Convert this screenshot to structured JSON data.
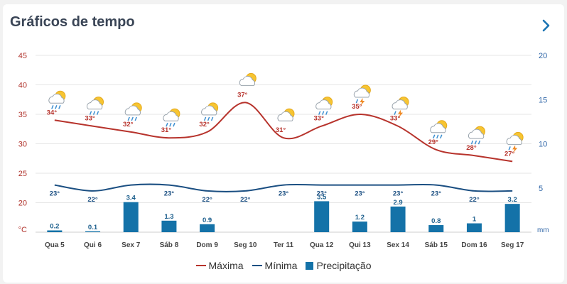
{
  "header": {
    "title": "Gráficos de tempo"
  },
  "icons": {
    "next": "chevron-right-icon"
  },
  "legend": {
    "max": "Máxima",
    "min": "Mínima",
    "precip": "Precipitação"
  },
  "colors": {
    "max": "#b7332c",
    "min": "#1b4f82",
    "precip": "#1472a8"
  },
  "chart_data": {
    "type": "line",
    "categories": [
      "Qua 5",
      "Qui 6",
      "Sex 7",
      "Sáb 8",
      "Dom 9",
      "Seg 10",
      "Ter 11",
      "Qua 12",
      "Qui 13",
      "Sex 14",
      "Sáb 15",
      "Dom 16",
      "Seg 17"
    ],
    "series": [
      {
        "name": "Máxima",
        "values": [
          34,
          33,
          32,
          31,
          32,
          37,
          31,
          33,
          35,
          33,
          29,
          28,
          27
        ],
        "labels": [
          "34°",
          "33°",
          "32°",
          "31°",
          "32°",
          "37°",
          "31°",
          "33°",
          "35°",
          "33°",
          "29°",
          "28°",
          "27°"
        ]
      },
      {
        "name": "Mínima",
        "values": [
          23,
          22,
          23,
          23,
          22,
          22,
          23,
          23,
          23,
          23,
          23,
          22,
          22
        ],
        "labels": [
          "23°",
          "22°",
          "",
          "23°",
          "22°",
          "22°",
          "23°",
          "23°",
          "23°",
          "23°",
          "23°",
          "22°",
          ""
        ]
      },
      {
        "name": "Precipitação",
        "type": "bar",
        "values": [
          0.2,
          0.1,
          3.4,
          1.3,
          0.9,
          null,
          null,
          3.5,
          1.2,
          2.9,
          0.8,
          1,
          3.2
        ],
        "labels": [
          "0.2",
          "0.1",
          "3.4",
          "1.3",
          "0.9",
          "",
          "",
          "3.5",
          "1.2",
          "2.9",
          "0.8",
          "1",
          "3.2"
        ]
      }
    ],
    "weather_icons": [
      "rain-cloud-sun-icon",
      "rain-cloud-sun-icon",
      "rain-cloud-sun-icon",
      "rain-cloud-sun-icon",
      "rain-cloud-sun-icon",
      "sun-cloud-icon",
      "sun-cloud-icon",
      "rain-cloud-sun-icon",
      "storm-cloud-sun-icon",
      "storm-cloud-sun-icon",
      "rain-cloud-sun-icon",
      "rain-cloud-sun-icon",
      "storm-cloud-sun-icon"
    ],
    "y_left": {
      "label": "°C",
      "ticks": [
        "45",
        "40",
        "35",
        "30",
        "25",
        "20"
      ],
      "ylim": [
        15,
        45
      ]
    },
    "y_right": {
      "label": "mm",
      "ticks": [
        "20",
        "15",
        "10",
        "5"
      ],
      "ylim": [
        0,
        20
      ]
    },
    "grid": true,
    "legend_position": "bottom"
  }
}
